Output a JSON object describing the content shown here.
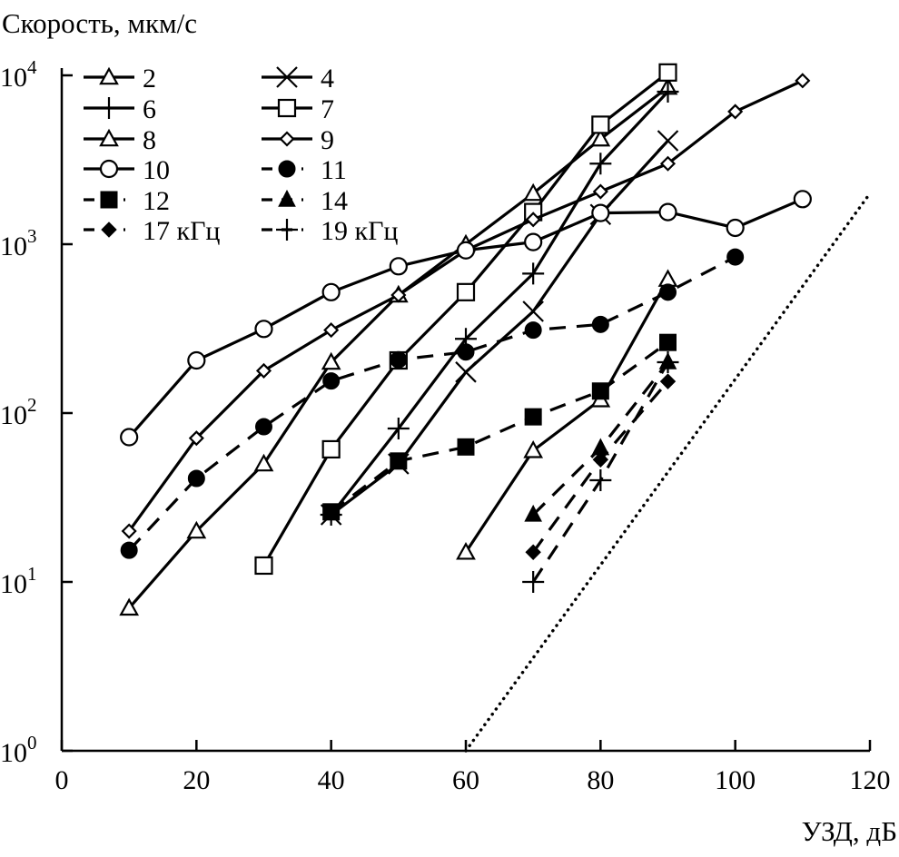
{
  "chart_data": {
    "type": "line",
    "ylabel": "Скорость, мкм/с",
    "xlabel": "УЗД, дБ",
    "xlim": [
      0,
      120
    ],
    "ylim": [
      1,
      10000
    ],
    "yscale": "log",
    "x_ticks": [
      "0",
      "20",
      "40",
      "60",
      "80",
      "100",
      "120"
    ],
    "x_tick_values": [
      0,
      20,
      40,
      60,
      80,
      100,
      120
    ],
    "y_ticks": [
      {
        "base": "10",
        "exp": "0"
      },
      {
        "base": "10",
        "exp": "1"
      },
      {
        "base": "10",
        "exp": "2"
      },
      {
        "base": "10",
        "exp": "3"
      },
      {
        "base": "10",
        "exp": "4"
      }
    ],
    "y_tick_values": [
      1,
      10,
      100,
      1000,
      10000
    ],
    "legend_position": "top-left",
    "series": [
      {
        "name": "2",
        "marker": "triangle-open",
        "style": "solid",
        "x": [
          10,
          20,
          30,
          40,
          50,
          60,
          70,
          80,
          90
        ],
        "y": [
          7,
          20,
          50,
          200,
          500,
          1000,
          2000,
          4200,
          8500
        ]
      },
      {
        "name": "4",
        "marker": "cross-x",
        "style": "solid",
        "x": [
          40,
          50,
          60,
          70,
          80,
          90
        ],
        "y": [
          25,
          50,
          175,
          400,
          1500,
          4100
        ]
      },
      {
        "name": "6",
        "marker": "plus",
        "style": "solid",
        "x": [
          40,
          50,
          60,
          70,
          80,
          90
        ],
        "y": [
          25,
          81,
          275,
          670,
          3000,
          8000
        ]
      },
      {
        "name": "7",
        "marker": "square-open",
        "style": "solid",
        "x": [
          30,
          40,
          50,
          60,
          70,
          80,
          90
        ],
        "y": [
          12.5,
          61,
          205,
          520,
          1550,
          5100,
          10400
        ]
      },
      {
        "name": "8",
        "marker": "triangle-open",
        "style": "solid",
        "x": [
          60,
          70,
          80,
          90
        ],
        "y": [
          15,
          60,
          120,
          620
        ]
      },
      {
        "name": "9",
        "marker": "diamond-open",
        "style": "solid",
        "x": [
          10,
          20,
          30,
          40,
          50,
          60,
          70,
          80,
          90,
          100,
          110
        ],
        "y": [
          20,
          71,
          178,
          310,
          500,
          920,
          1400,
          2050,
          3000,
          6100,
          9300
        ]
      },
      {
        "name": "10",
        "marker": "circle-open",
        "style": "solid",
        "x": [
          10,
          20,
          30,
          40,
          50,
          60,
          70,
          80,
          90,
          100,
          110
        ],
        "y": [
          72,
          205,
          315,
          520,
          740,
          920,
          1030,
          1530,
          1550,
          1250,
          1850
        ]
      },
      {
        "name": "11",
        "marker": "circle-filled",
        "style": "dashed",
        "x": [
          10,
          20,
          30,
          40,
          50,
          60,
          70,
          80,
          90,
          100
        ],
        "y": [
          15.4,
          41,
          83,
          155,
          207,
          230,
          310,
          335,
          520,
          840
        ]
      },
      {
        "name": "12",
        "marker": "square-filled",
        "style": "dashed",
        "x": [
          40,
          50,
          60,
          70,
          80,
          90
        ],
        "y": [
          26,
          52,
          63,
          95,
          135,
          262
        ]
      },
      {
        "name": "14",
        "marker": "triangle-filled",
        "style": "dashed",
        "x": [
          70,
          80,
          90
        ],
        "y": [
          25,
          62,
          200
        ]
      },
      {
        "name": "17 кГц",
        "marker": "diamond-filled",
        "style": "dashed",
        "x": [
          70,
          80,
          90
        ],
        "y": [
          15,
          53,
          154
        ]
      },
      {
        "name": "19 кГц",
        "marker": "plus",
        "style": "dashed",
        "x": [
          70,
          80,
          90
        ],
        "y": [
          10,
          40,
          200
        ]
      }
    ],
    "reference_line": {
      "style": "dotted",
      "x": [
        60,
        120
      ],
      "y": [
        1,
        2000
      ]
    }
  }
}
